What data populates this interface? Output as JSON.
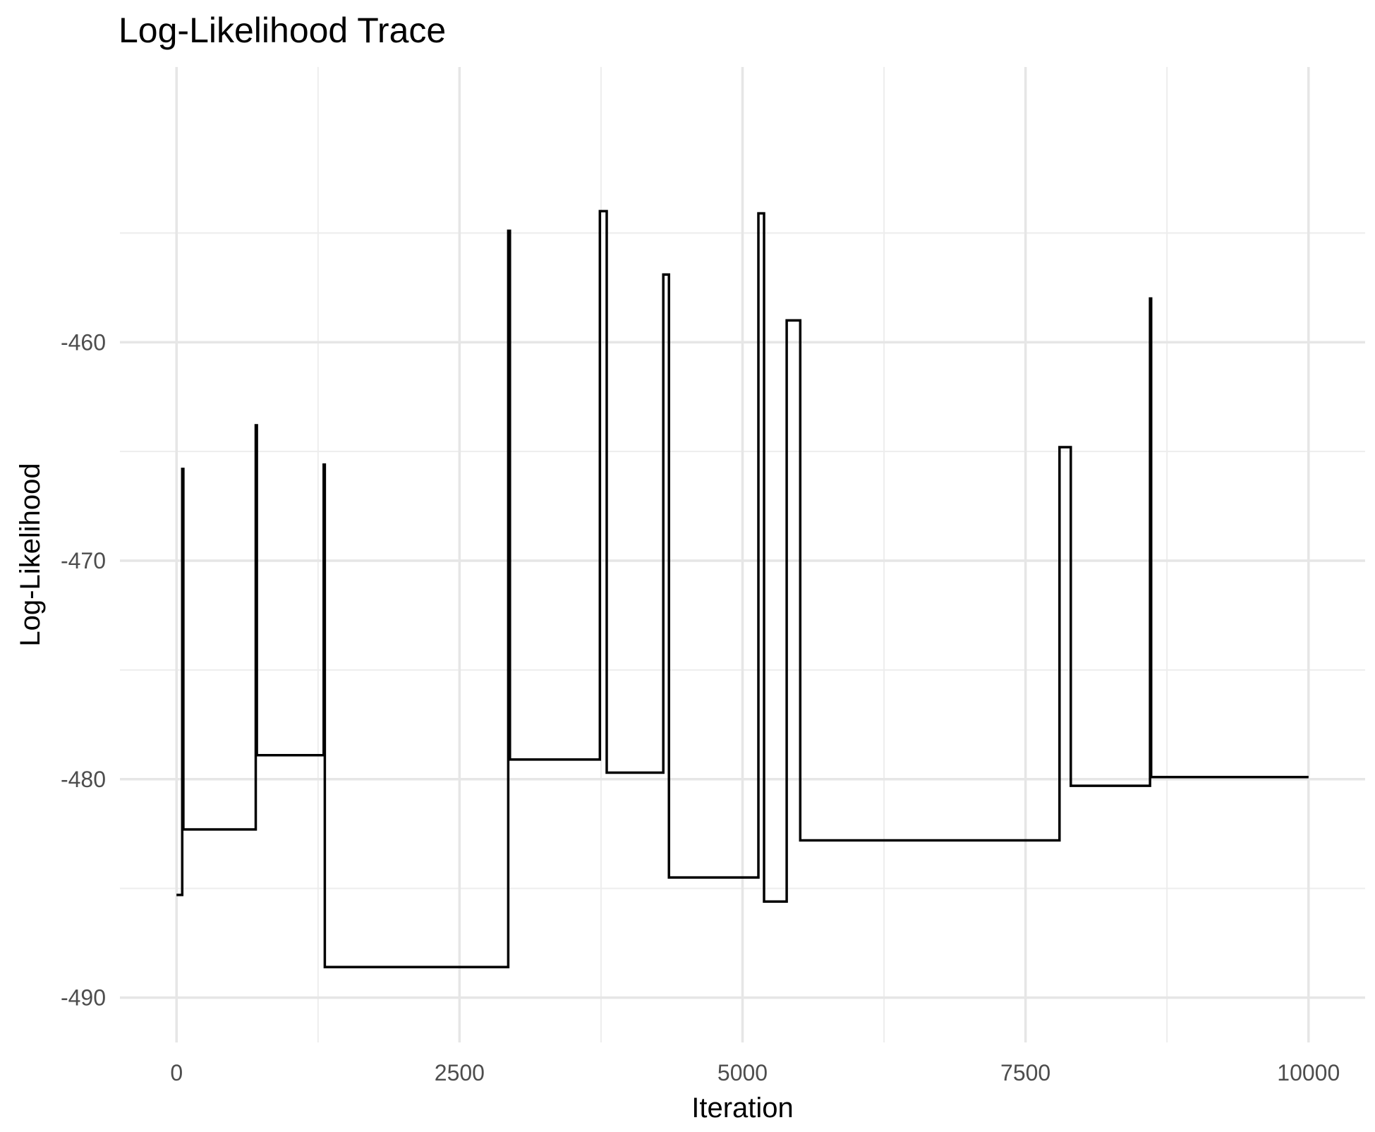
{
  "chart_data": {
    "type": "line",
    "title": "Log-Likelihood Trace",
    "xlabel": "Iteration",
    "ylabel": "Log-Likelihood",
    "xlim": [
      -500,
      10500
    ],
    "ylim": [
      -490,
      -450
    ],
    "x_ticks": [
      0,
      2500,
      5000,
      7500,
      10000
    ],
    "x_tick_labels": [
      "0",
      "2500",
      "5000",
      "7500",
      "10000"
    ],
    "y_ticks": [
      -490,
      -480,
      -470,
      -460
    ],
    "y_tick_labels": [
      "-490",
      "-480",
      "-470",
      "-460"
    ],
    "x_minor_ticks": [
      1250,
      3750,
      6250,
      8750
    ],
    "y_minor_ticks": [
      -485,
      -475,
      -465,
      -455
    ],
    "grid": true,
    "line_color": "#000000",
    "series": [
      {
        "x": [
          0,
          50,
          50,
          60,
          60,
          70,
          70,
          700,
          700,
          710,
          710,
          1300,
          1300,
          1310,
          1310,
          2930,
          2930,
          2945,
          2945,
          2960,
          2960,
          3740,
          3740,
          3800,
          3800,
          4300,
          4300,
          4350,
          4350,
          5140,
          5140,
          5190,
          5190,
          5390,
          5390,
          5510,
          5510,
          7800,
          7800,
          7900,
          7900,
          8600,
          8600,
          8610,
          8610,
          10000
        ],
        "y": [
          -485.3,
          -485.3,
          -465.8,
          -465.8,
          -482.3,
          -482.3,
          -482.3,
          -482.3,
          -463.8,
          -463.8,
          -478.9,
          -478.9,
          -465.6,
          -465.6,
          -488.6,
          -488.6,
          -454.9,
          -454.9,
          -479.1,
          -479.1,
          -479.1,
          -479.1,
          -454.0,
          -454.0,
          -479.7,
          -479.7,
          -456.9,
          -456.9,
          -484.5,
          -484.5,
          -454.1,
          -454.1,
          -485.6,
          -485.6,
          -459.0,
          -459.0,
          -482.8,
          -482.8,
          -464.8,
          -464.8,
          -480.3,
          -480.3,
          -458.0,
          -458.0,
          -479.9,
          -479.9
        ]
      }
    ]
  }
}
